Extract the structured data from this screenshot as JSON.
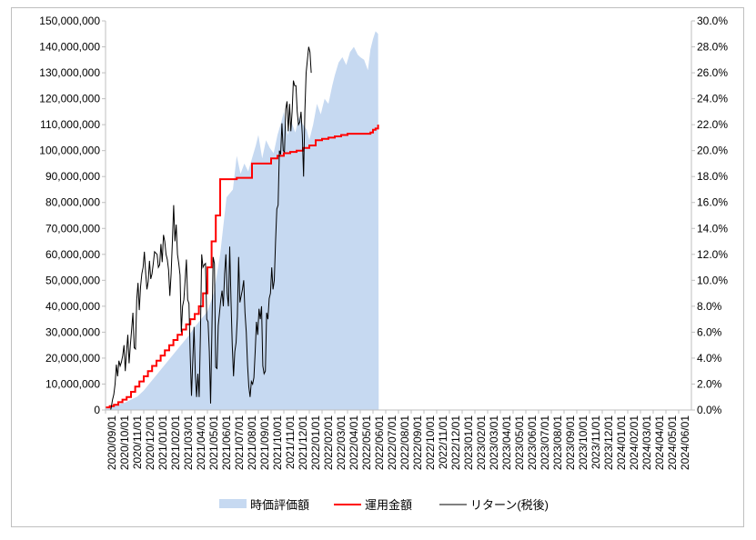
{
  "chart_data": {
    "type": "area",
    "title": "",
    "xlabel": "",
    "ylabel": "",
    "ylim": [
      0,
      150000000
    ],
    "y2lim": [
      0,
      0.3
    ],
    "y_ticks": [
      "0",
      "10,000,000",
      "20,000,000",
      "30,000,000",
      "40,000,000",
      "50,000,000",
      "60,000,000",
      "70,000,000",
      "80,000,000",
      "90,000,000",
      "100,000,000",
      "110,000,000",
      "120,000,000",
      "130,000,000",
      "140,000,000",
      "150,000,000"
    ],
    "y2_ticks": [
      "0.0%",
      "2.0%",
      "4.0%",
      "6.0%",
      "8.0%",
      "10.0%",
      "12.0%",
      "14.0%",
      "16.0%",
      "18.0%",
      "20.0%",
      "22.0%",
      "24.0%",
      "26.0%",
      "28.0%",
      "30.0%"
    ],
    "x_ticks": [
      "2020/09/01",
      "2020/10/01",
      "2020/11/01",
      "2020/12/01",
      "2021/01/01",
      "2021/02/01",
      "2021/03/01",
      "2021/04/01",
      "2021/05/01",
      "2021/06/01",
      "2021/07/01",
      "2021/08/01",
      "2021/09/01",
      "2021/10/01",
      "2021/11/01",
      "2021/12/01",
      "2022/01/01",
      "2022/02/01",
      "2022/03/01",
      "2022/04/01",
      "2022/05/01",
      "2022/06/01",
      "2022/07/01",
      "2022/08/01",
      "2022/09/01",
      "2022/10/01",
      "2022/11/01",
      "2022/12/01",
      "2023/01/01",
      "2023/02/01",
      "2023/03/01",
      "2023/04/01",
      "2023/05/01",
      "2023/06/01",
      "2023/07/01",
      "2023/08/01",
      "2023/09/01",
      "2023/10/01",
      "2023/11/01",
      "2023/12/01",
      "2024/01/01",
      "2024/02/01",
      "2024/03/01",
      "2024/04/01",
      "2024/05/01",
      "2024/06/01"
    ],
    "grid": false,
    "legend_position": "bottom",
    "series": [
      {
        "name": "時価評価額",
        "axis": "left",
        "style": "area",
        "color": "#c6d9f1",
        "points": [
          [
            0,
            1000000
          ],
          [
            1,
            2200000
          ],
          [
            1.5,
            2800000
          ],
          [
            2,
            4000000
          ],
          [
            2.5,
            5200000
          ],
          [
            3,
            7500000
          ],
          [
            3.5,
            10500000
          ],
          [
            4,
            13500000
          ],
          [
            4.5,
            16500000
          ],
          [
            5,
            19500000
          ],
          [
            5.5,
            22500000
          ],
          [
            6,
            25500000
          ],
          [
            6.5,
            28500000
          ],
          [
            7,
            32000000
          ],
          [
            7.5,
            35000000
          ],
          [
            8,
            38000000
          ],
          [
            8.5,
            45000000
          ],
          [
            9,
            60000000
          ],
          [
            9.5,
            82000000
          ],
          [
            10,
            85000000
          ],
          [
            10.3,
            98000000
          ],
          [
            10.6,
            91000000
          ],
          [
            10.9,
            95000000
          ],
          [
            11.2,
            92000000
          ],
          [
            11.5,
            97000000
          ],
          [
            11.8,
            102000000
          ],
          [
            12,
            106000000
          ],
          [
            12.3,
            97000000
          ],
          [
            12.6,
            104000000
          ],
          [
            12.9,
            101000000
          ],
          [
            13.2,
            99000000
          ],
          [
            13.5,
            106000000
          ],
          [
            13.8,
            111000000
          ],
          [
            14,
            115000000
          ],
          [
            14.3,
            106000000
          ],
          [
            14.6,
            111000000
          ],
          [
            14.9,
            107000000
          ],
          [
            15.2,
            113000000
          ],
          [
            15.5,
            110000000
          ],
          [
            15.8,
            108000000
          ],
          [
            16,
            104000000
          ],
          [
            16.3,
            110000000
          ],
          [
            16.6,
            118000000
          ],
          [
            16.9,
            114000000
          ],
          [
            17.2,
            120000000
          ],
          [
            17.5,
            118000000
          ],
          [
            17.8,
            125000000
          ],
          [
            18,
            129000000
          ],
          [
            18.3,
            134000000
          ],
          [
            18.6,
            136000000
          ],
          [
            18.9,
            133000000
          ],
          [
            19.2,
            138000000
          ],
          [
            19.5,
            140000000
          ],
          [
            19.8,
            137000000
          ],
          [
            20,
            136000000
          ],
          [
            20.3,
            135000000
          ],
          [
            20.6,
            131000000
          ],
          [
            20.8,
            139000000
          ],
          [
            21,
            143000000
          ],
          [
            21.2,
            146000000
          ],
          [
            21.4,
            145000000
          ],
          [
            21.45,
            0
          ]
        ]
      },
      {
        "name": "運用金額",
        "axis": "left",
        "style": "step",
        "color": "#ff0000",
        "points": [
          [
            0,
            1000000
          ],
          [
            0.33,
            1500000
          ],
          [
            0.66,
            2000000
          ],
          [
            1,
            3000000
          ],
          [
            1.33,
            4000000
          ],
          [
            1.66,
            5000000
          ],
          [
            2,
            7000000
          ],
          [
            2.33,
            9000000
          ],
          [
            2.66,
            11000000
          ],
          [
            3,
            13000000
          ],
          [
            3.33,
            15000000
          ],
          [
            3.66,
            17000000
          ],
          [
            4,
            19000000
          ],
          [
            4.33,
            21000000
          ],
          [
            4.66,
            23000000
          ],
          [
            5,
            25000000
          ],
          [
            5.33,
            27000000
          ],
          [
            5.66,
            29000000
          ],
          [
            6,
            31000000
          ],
          [
            6.33,
            33000000
          ],
          [
            6.66,
            35000000
          ],
          [
            7,
            37000000
          ],
          [
            7.33,
            40000000
          ],
          [
            7.66,
            45000000
          ],
          [
            8,
            55000000
          ],
          [
            8.33,
            65000000
          ],
          [
            8.66,
            75000000
          ],
          [
            9,
            89000000
          ],
          [
            9.5,
            89000000
          ],
          [
            10,
            89000000
          ],
          [
            10.3,
            89500000
          ],
          [
            11,
            89500000
          ],
          [
            11.5,
            95000000
          ],
          [
            12,
            95000000
          ],
          [
            12.5,
            95000000
          ],
          [
            13,
            97000000
          ],
          [
            13.5,
            98000000
          ],
          [
            14,
            99000000
          ],
          [
            14.5,
            99500000
          ],
          [
            15,
            100000000
          ],
          [
            15.5,
            101000000
          ],
          [
            16,
            102000000
          ],
          [
            16.5,
            104000000
          ],
          [
            17,
            104500000
          ],
          [
            17.5,
            105000000
          ],
          [
            18,
            105500000
          ],
          [
            18.5,
            106000000
          ],
          [
            19,
            106500000
          ],
          [
            19.5,
            106500000
          ],
          [
            20,
            106500000
          ],
          [
            20.5,
            106500000
          ],
          [
            20.8,
            107000000
          ],
          [
            21,
            108000000
          ],
          [
            21.2,
            108500000
          ],
          [
            21.4,
            110000000
          ]
        ]
      },
      {
        "name": "リターン(税後)",
        "axis": "right",
        "style": "line",
        "color": "#000000",
        "points": [
          [
            0.3,
            -0.01
          ],
          [
            0.45,
            0.002
          ],
          [
            0.55,
            0.008
          ],
          [
            0.65,
            0.012
          ],
          [
            0.75,
            0.02
          ],
          [
            0.85,
            0.035
          ],
          [
            0.95,
            0.026
          ],
          [
            1.05,
            0.038
          ],
          [
            1.15,
            0.034
          ],
          [
            1.25,
            0.037
          ],
          [
            1.35,
            0.042
          ],
          [
            1.45,
            0.05
          ],
          [
            1.55,
            0.03
          ],
          [
            1.65,
            0.045
          ],
          [
            1.75,
            0.058
          ],
          [
            1.85,
            0.036
          ],
          [
            1.95,
            0.05
          ],
          [
            2.05,
            0.062
          ],
          [
            2.15,
            0.075
          ],
          [
            2.25,
            0.048
          ],
          [
            2.35,
            0.047
          ],
          [
            2.45,
            0.085
          ],
          [
            2.55,
            0.098
          ],
          [
            2.65,
            0.077
          ],
          [
            2.75,
            0.095
          ],
          [
            2.85,
            0.105
          ],
          [
            2.95,
            0.11
          ],
          [
            3.05,
            0.122
          ],
          [
            3.15,
            0.106
          ],
          [
            3.25,
            0.093
          ],
          [
            3.35,
            0.099
          ],
          [
            3.45,
            0.115
          ],
          [
            3.55,
            0.101
          ],
          [
            3.65,
            0.105
          ],
          [
            3.75,
            0.113
          ],
          [
            3.85,
            0.122
          ],
          [
            3.95,
            0.121
          ],
          [
            4.05,
            0.12
          ],
          [
            4.15,
            0.11
          ],
          [
            4.25,
            0.112
          ],
          [
            4.35,
            0.128
          ],
          [
            4.45,
            0.114
          ],
          [
            4.55,
            0.135
          ],
          [
            4.65,
            0.13
          ],
          [
            4.75,
            0.12
          ],
          [
            4.85,
            0.116
          ],
          [
            4.95,
            0.108
          ],
          [
            5.05,
            0.088
          ],
          [
            5.15,
            0.105
          ],
          [
            5.25,
            0.13
          ],
          [
            5.35,
            0.158
          ],
          [
            5.45,
            0.13
          ],
          [
            5.55,
            0.143
          ],
          [
            5.65,
            0.12
          ],
          [
            5.75,
            0.113
          ],
          [
            5.85,
            0.104
          ],
          [
            5.95,
            0.06
          ],
          [
            6.05,
            0.08
          ],
          [
            6.15,
            0.085
          ],
          [
            6.25,
            0.1
          ],
          [
            6.35,
            0.116
          ],
          [
            6.45,
            0.085
          ],
          [
            6.55,
            0.082
          ],
          [
            6.65,
            0.042
          ],
          [
            6.75,
            0.011
          ],
          [
            6.85,
            0.038
          ],
          [
            6.95,
            0.064
          ],
          [
            7.05,
            0.028
          ],
          [
            7.15,
            0.01
          ],
          [
            7.25,
            0.028
          ],
          [
            7.35,
            0.01
          ],
          [
            7.45,
            0.058
          ],
          [
            7.55,
            0.12
          ],
          [
            7.65,
            0.11
          ],
          [
            7.75,
            0.112
          ],
          [
            7.85,
            0.113
          ],
          [
            7.95,
            0.07
          ],
          [
            8.05,
            0.068
          ],
          [
            8.15,
            0.045
          ],
          [
            8.25,
            0.005
          ],
          [
            8.35,
            0.06
          ],
          [
            8.45,
            0.118
          ],
          [
            8.55,
            0.113
          ],
          [
            8.65,
            0.033
          ],
          [
            8.75,
            0.032
          ],
          [
            8.85,
            0.065
          ],
          [
            8.95,
            0.075
          ],
          [
            9.05,
            0.085
          ],
          [
            9.15,
            0.092
          ],
          [
            9.25,
            0.08
          ],
          [
            9.35,
            0.105
          ],
          [
            9.45,
            0.12
          ],
          [
            9.55,
            0.09
          ],
          [
            9.65,
            0.08
          ],
          [
            9.75,
            0.126
          ],
          [
            9.85,
            0.085
          ],
          [
            9.95,
            0.05
          ],
          [
            10.05,
            0.026
          ],
          [
            10.15,
            0.045
          ],
          [
            10.25,
            0.052
          ],
          [
            10.35,
            0.072
          ],
          [
            10.45,
            0.118
          ],
          [
            10.55,
            0.083
          ],
          [
            10.65,
            0.088
          ],
          [
            10.75,
            0.093
          ],
          [
            10.85,
            0.1
          ],
          [
            10.95,
            0.075
          ],
          [
            11.05,
            0.06
          ],
          [
            11.15,
            0.035
          ],
          [
            11.25,
            0.018
          ],
          [
            11.35,
            0.01
          ],
          [
            11.45,
            0.022
          ],
          [
            11.55,
            0.02
          ],
          [
            11.65,
            0.025
          ],
          [
            11.75,
            0.045
          ],
          [
            11.85,
            0.068
          ],
          [
            11.95,
            0.058
          ],
          [
            12.05,
            0.078
          ],
          [
            12.15,
            0.07
          ],
          [
            12.25,
            0.08
          ],
          [
            12.35,
            0.034
          ],
          [
            12.45,
            0.028
          ],
          [
            12.55,
            0.03
          ],
          [
            12.65,
            0.075
          ],
          [
            12.75,
            0.07
          ],
          [
            12.85,
            0.086
          ],
          [
            12.95,
            0.09
          ],
          [
            13.05,
            0.11
          ],
          [
            13.15,
            0.093
          ],
          [
            13.25,
            0.1
          ],
          [
            13.35,
            0.13
          ],
          [
            13.45,
            0.155
          ],
          [
            13.55,
            0.158
          ],
          [
            13.65,
            0.2
          ],
          [
            13.75,
            0.197
          ],
          [
            13.85,
            0.221
          ],
          [
            13.95,
            0.2
          ],
          [
            14.05,
            0.199
          ],
          [
            14.15,
            0.232
          ],
          [
            14.25,
            0.238
          ],
          [
            14.35,
            0.215
          ],
          [
            14.45,
            0.236
          ],
          [
            14.55,
            0.215
          ],
          [
            14.65,
            0.23
          ],
          [
            14.75,
            0.254
          ],
          [
            14.85,
            0.25
          ],
          [
            14.95,
            0.25
          ],
          [
            15.05,
            0.23
          ],
          [
            15.15,
            0.22
          ],
          [
            15.25,
            0.222
          ],
          [
            15.35,
            0.23
          ],
          [
            15.45,
            0.212
          ],
          [
            15.55,
            0.18
          ],
          [
            15.65,
            0.23
          ],
          [
            15.75,
            0.26
          ],
          [
            15.85,
            0.27
          ],
          [
            15.95,
            0.28
          ],
          [
            16.05,
            0.276
          ],
          [
            16.15,
            0.26
          ]
        ]
      }
    ]
  }
}
